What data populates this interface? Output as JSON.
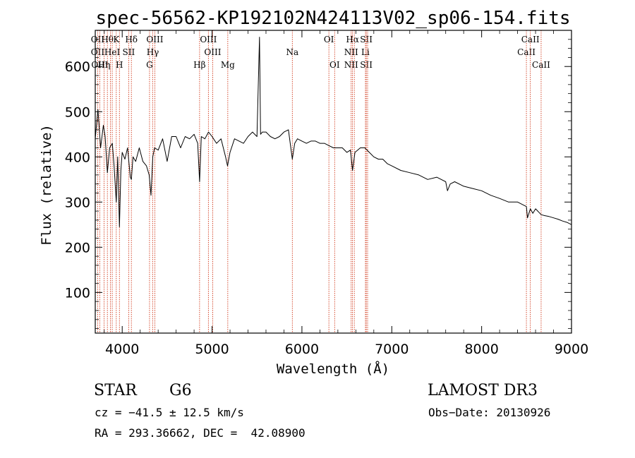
{
  "chart_data": {
    "type": "line",
    "title": "spec-56562-KP192102N424113V02_sp06-154.fits",
    "xlabel": "Wavelength (Å)",
    "ylabel": "Flux (relative)",
    "xlim": [
      3700,
      9000
    ],
    "ylim": [
      10,
      680
    ],
    "x_ticks": [
      4000,
      5000,
      6000,
      7000,
      8000,
      9000
    ],
    "y_ticks": [
      100,
      200,
      300,
      400,
      500,
      600
    ],
    "grid": false,
    "series": [
      {
        "name": "spectrum",
        "x": [
          3700,
          3730,
          3760,
          3790,
          3810,
          3835,
          3860,
          3890,
          3910,
          3934,
          3950,
          3969,
          3985,
          4000,
          4030,
          4060,
          4090,
          4102,
          4120,
          4150,
          4190,
          4230,
          4270,
          4300,
          4320,
          4340,
          4360,
          4400,
          4450,
          4500,
          4550,
          4600,
          4650,
          4700,
          4750,
          4800,
          4840,
          4861,
          4880,
          4920,
          4960,
          5000,
          5050,
          5100,
          5150,
          5172,
          5200,
          5250,
          5300,
          5350,
          5400,
          5450,
          5500,
          5528,
          5540,
          5560,
          5600,
          5650,
          5700,
          5750,
          5800,
          5850,
          5893,
          5920,
          5950,
          6000,
          6050,
          6100,
          6150,
          6200,
          6250,
          6300,
          6350,
          6400,
          6450,
          6500,
          6540,
          6563,
          6590,
          6620,
          6650,
          6700,
          6750,
          6800,
          6850,
          6900,
          6950,
          7000,
          7100,
          7200,
          7300,
          7400,
          7500,
          7600,
          7620,
          7650,
          7700,
          7800,
          7900,
          8000,
          8100,
          8200,
          8300,
          8400,
          8498,
          8510,
          8542,
          8570,
          8600,
          8662,
          8700,
          8750,
          8800,
          8850,
          8900,
          8950,
          9000
        ],
        "values": [
          440,
          505,
          420,
          470,
          445,
          365,
          420,
          430,
          380,
          300,
          400,
          245,
          370,
          410,
          395,
          420,
          355,
          350,
          400,
          390,
          420,
          390,
          380,
          360,
          315,
          400,
          420,
          415,
          440,
          390,
          445,
          445,
          420,
          445,
          440,
          450,
          430,
          345,
          445,
          440,
          455,
          445,
          430,
          440,
          400,
          380,
          410,
          440,
          435,
          430,
          445,
          455,
          445,
          665,
          450,
          455,
          455,
          445,
          440,
          445,
          455,
          460,
          395,
          430,
          440,
          435,
          430,
          435,
          435,
          430,
          430,
          425,
          420,
          420,
          420,
          410,
          415,
          370,
          410,
          415,
          420,
          420,
          410,
          400,
          395,
          395,
          385,
          380,
          370,
          365,
          360,
          350,
          355,
          345,
          325,
          340,
          345,
          335,
          330,
          325,
          315,
          308,
          300,
          300,
          290,
          265,
          285,
          275,
          285,
          272,
          270,
          268,
          265,
          262,
          258,
          255,
          250
        ]
      }
    ],
    "line_markers": [
      {
        "w": 3727,
        "labels": [
          "OII",
          "OII",
          ""
        ]
      },
      {
        "w": 3750,
        "labels": [
          "",
          "",
          "OIII"
        ]
      },
      {
        "w": 3798,
        "labels": [
          "",
          "",
          "Hη"
        ]
      },
      {
        "w": 3835,
        "labels": [
          "Hθ",
          "",
          ""
        ]
      },
      {
        "w": 3869,
        "labels": [
          "",
          "",
          ""
        ]
      },
      {
        "w": 3889,
        "labels": [
          "",
          "HeI",
          ""
        ]
      },
      {
        "w": 3934,
        "labels": [
          "K",
          "",
          ""
        ]
      },
      {
        "w": 3969,
        "labels": [
          "",
          "",
          "H"
        ]
      },
      {
        "w": 4072,
        "labels": [
          "",
          "SII",
          ""
        ]
      },
      {
        "w": 4102,
        "labels": [
          "Hδ",
          "",
          ""
        ]
      },
      {
        "w": 4304,
        "labels": [
          "",
          "",
          "G"
        ]
      },
      {
        "w": 4340,
        "labels": [
          "",
          "Hγ",
          ""
        ]
      },
      {
        "w": 4363,
        "labels": [
          "OIII",
          "",
          ""
        ]
      },
      {
        "w": 4861,
        "labels": [
          "",
          "",
          "Hβ"
        ]
      },
      {
        "w": 4959,
        "labels": [
          "OIII",
          "",
          ""
        ]
      },
      {
        "w": 5007,
        "labels": [
          "",
          "OIII",
          ""
        ]
      },
      {
        "w": 5175,
        "labels": [
          "",
          "",
          "Mg"
        ]
      },
      {
        "w": 5893,
        "labels": [
          "",
          "Na",
          ""
        ]
      },
      {
        "w": 6300,
        "labels": [
          "OI",
          "",
          ""
        ]
      },
      {
        "w": 6364,
        "labels": [
          "",
          "",
          "OI"
        ]
      },
      {
        "w": 6548,
        "labels": [
          "",
          "NII",
          "NII"
        ]
      },
      {
        "w": 6563,
        "labels": [
          "Hα",
          "",
          ""
        ]
      },
      {
        "w": 6583,
        "labels": [
          "",
          "",
          ""
        ]
      },
      {
        "w": 6707,
        "labels": [
          "",
          "Li",
          ""
        ]
      },
      {
        "w": 6716,
        "labels": [
          "SII",
          "",
          "SII"
        ]
      },
      {
        "w": 6731,
        "labels": [
          "",
          "",
          ""
        ]
      },
      {
        "w": 8498,
        "labels": [
          "",
          "CaII",
          ""
        ]
      },
      {
        "w": 8542,
        "labels": [
          "CaII",
          "",
          ""
        ]
      },
      {
        "w": 8662,
        "labels": [
          "",
          "",
          "CaII"
        ]
      }
    ]
  },
  "footer": {
    "object_class": "STAR",
    "subclass": "G6",
    "survey": "LAMOST DR3",
    "redshift": "cz = −41.5 ± 12.5 km/s",
    "obs_date": "Obs−Date: 20130926",
    "coords": "RA = 293.36662, DEC =  42.08900"
  },
  "colors": {
    "marker": "#cc2200",
    "spectrum": "#000000"
  }
}
